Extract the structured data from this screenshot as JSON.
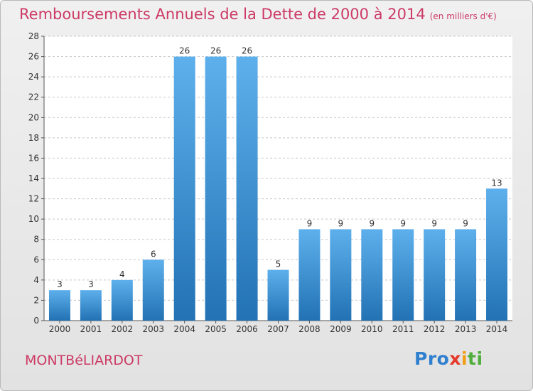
{
  "title": "Remboursements Annuels de la Dette de 2000 à 2014",
  "title_unit": "(en milliers d'€)",
  "city": "MONTBéLIARDOT",
  "logo": [
    "Pro",
    "x",
    "i",
    "ti"
  ],
  "colors": {
    "title": "#cc3a66",
    "bar_light": "#5eb0ec",
    "bar_dark": "#2272b4",
    "grid": "#c8c8c8"
  },
  "chart_data": {
    "type": "bar",
    "categories": [
      "2000",
      "2001",
      "2002",
      "2003",
      "2004",
      "2005",
      "2006",
      "2007",
      "2008",
      "2009",
      "2010",
      "2011",
      "2012",
      "2013",
      "2014"
    ],
    "values": [
      3,
      3,
      4,
      6,
      26,
      26,
      26,
      5,
      9,
      9,
      9,
      9,
      9,
      9,
      13
    ],
    "ylim": [
      0,
      28
    ],
    "yticks": [
      0,
      2,
      4,
      6,
      8,
      10,
      12,
      14,
      16,
      18,
      20,
      22,
      24,
      26,
      28
    ],
    "xlabel": "",
    "ylabel": "",
    "grid": true,
    "data_labels": true
  }
}
